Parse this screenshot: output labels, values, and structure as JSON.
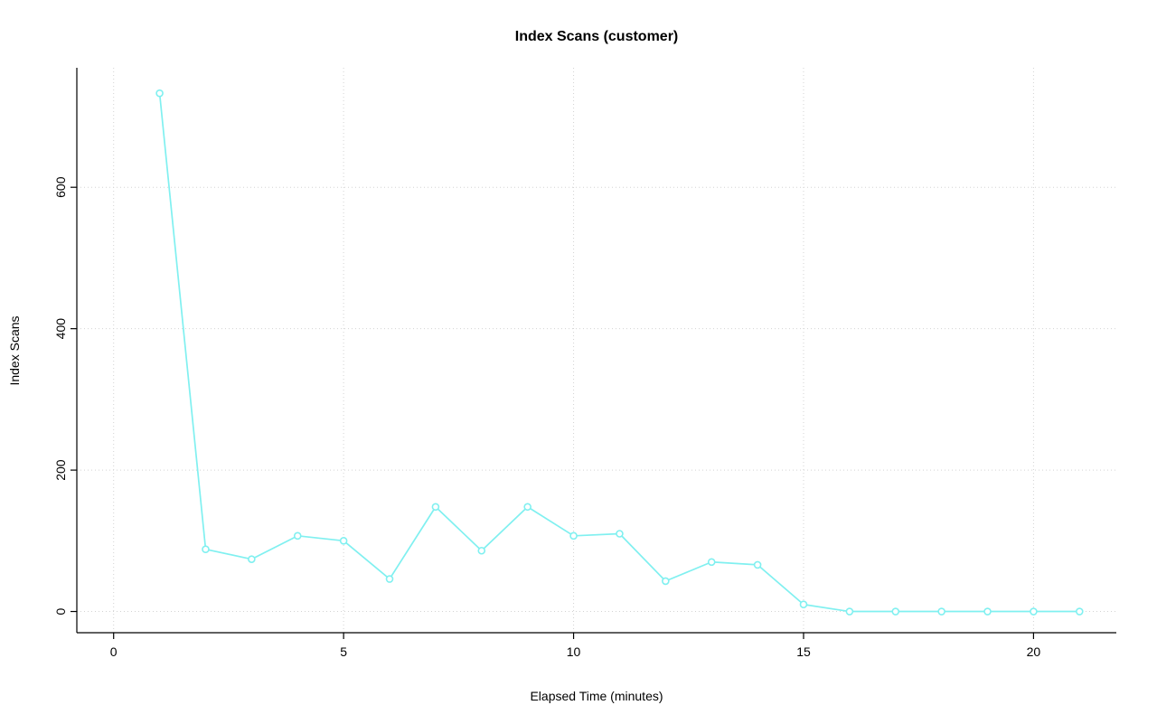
{
  "chart_data": {
    "type": "line",
    "title": "Index Scans (customer)",
    "xlabel": "Elapsed Time (minutes)",
    "ylabel": "Index Scans",
    "x": [
      1,
      2,
      3,
      4,
      5,
      6,
      7,
      8,
      9,
      10,
      11,
      12,
      13,
      14,
      15,
      16,
      17,
      18,
      19,
      20,
      21
    ],
    "series": [
      {
        "name": "index_scans",
        "values": [
          733,
          88,
          74,
          107,
          100,
          46,
          148,
          86,
          148,
          107,
          110,
          43,
          70,
          66,
          10,
          0,
          0,
          0,
          0,
          0,
          0
        ]
      }
    ],
    "xlim": [
      -0.8,
      21.8
    ],
    "ylim": [
      -30,
      769
    ],
    "xticks": [
      0,
      5,
      10,
      15,
      20
    ],
    "yticks": [
      0,
      200,
      400,
      600
    ],
    "grid": true,
    "legend": "none",
    "line_color": "#80F0F0",
    "marker": "open-circle",
    "marker_fill": "#ffffff",
    "grid_color": "#D3D3D3",
    "axis_color": "#000000"
  }
}
